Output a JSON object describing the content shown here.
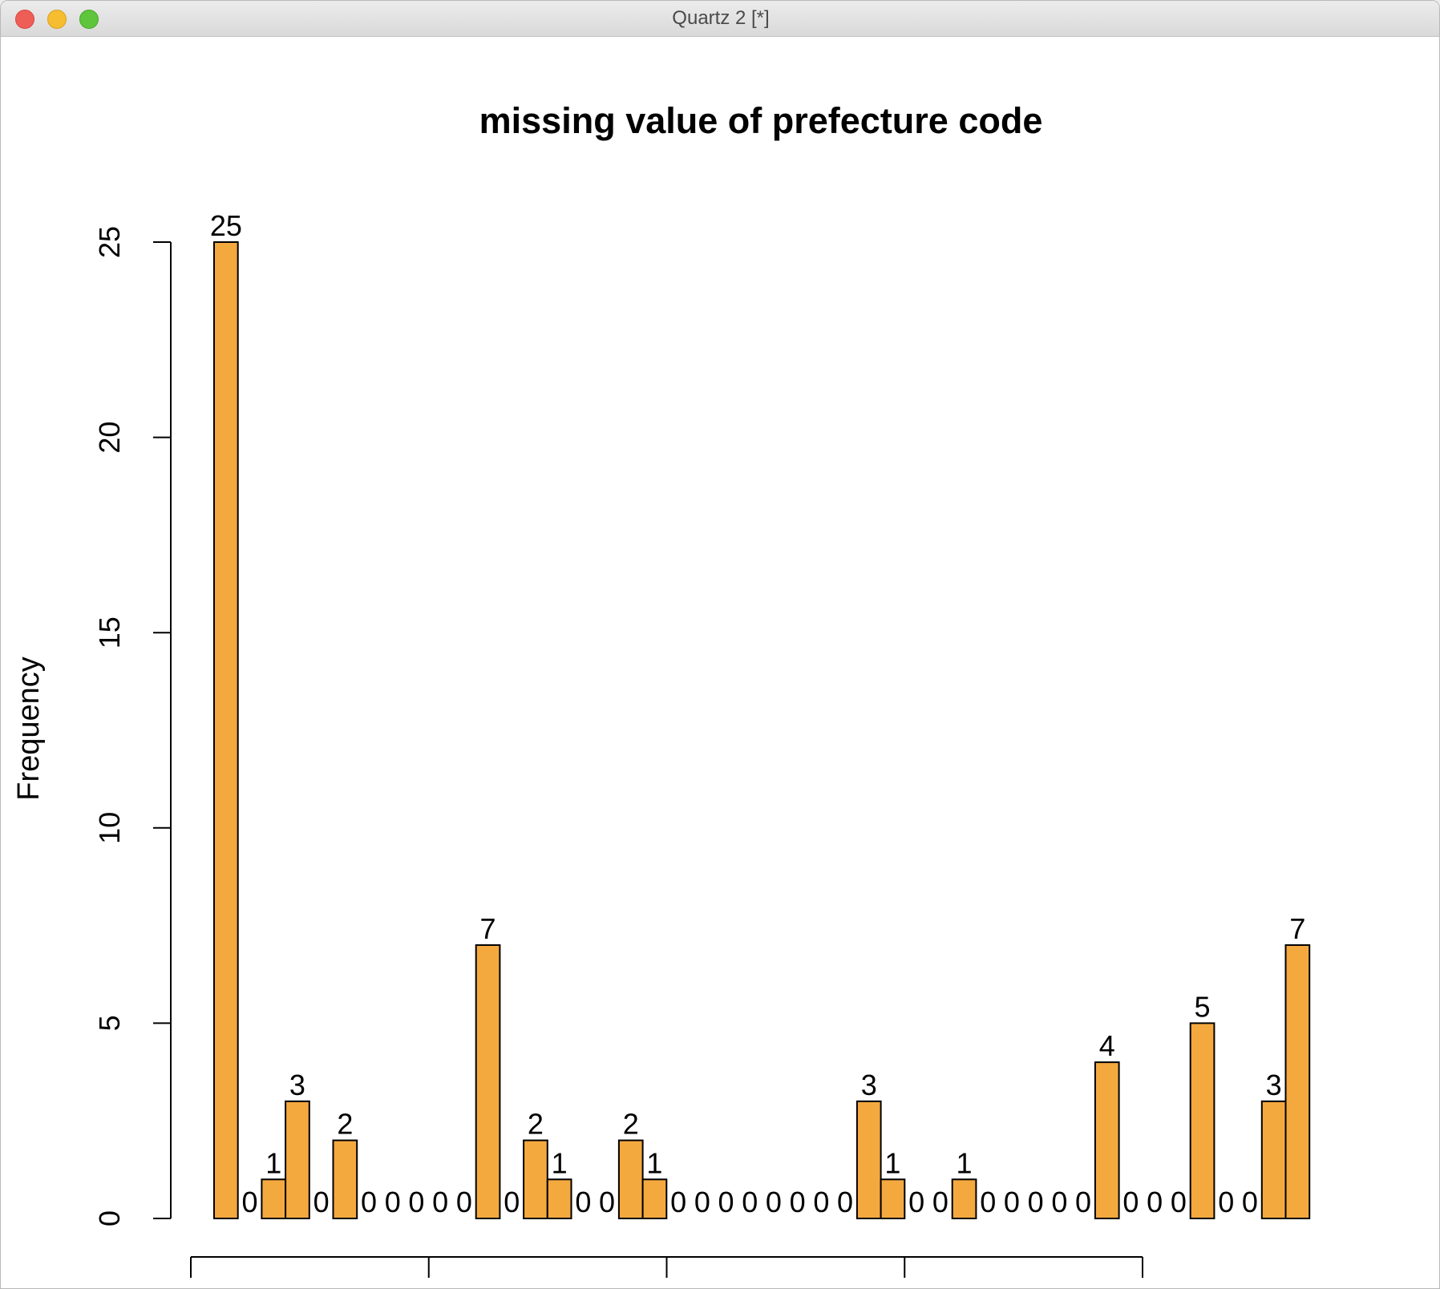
{
  "window": {
    "title": "Quartz 2 [*]"
  },
  "colors": {
    "bar_fill": "#f4a93f",
    "bar_stroke": "#000000",
    "axis": "#000000"
  },
  "chart_data": {
    "type": "bar",
    "title": "missing value of prefecture code",
    "xlabel": "",
    "ylabel": "Frequency",
    "ylim": [
      0,
      25
    ],
    "y_ticks": [
      0,
      5,
      10,
      15,
      20,
      25
    ],
    "y_tick_labels": [
      "0",
      "5",
      "10",
      "15",
      "20",
      "25"
    ],
    "x_axis_tick_count": 5,
    "x_tick_labels": [],
    "grid": false,
    "legend": "none",
    "values": [
      25,
      0,
      1,
      3,
      0,
      2,
      0,
      0,
      0,
      0,
      0,
      7,
      0,
      2,
      1,
      0,
      0,
      2,
      1,
      0,
      0,
      0,
      0,
      0,
      0,
      0,
      0,
      3,
      1,
      0,
      0,
      1,
      0,
      0,
      0,
      0,
      0,
      4,
      0,
      0,
      0,
      5,
      0,
      0,
      3,
      7
    ],
    "data_labels": [
      "25",
      "0",
      "1",
      "3",
      "0",
      "2",
      "0",
      "0",
      "0",
      "0",
      "0",
      "7",
      "0",
      "2",
      "1",
      "0",
      "0",
      "2",
      "1",
      "0",
      "0",
      "0",
      "0",
      "0",
      "0",
      "0",
      "0",
      "3",
      "1",
      "0",
      "0",
      "1",
      "0",
      "0",
      "0",
      "0",
      "0",
      "4",
      "0",
      "0",
      "0",
      "5",
      "0",
      "0",
      "3",
      "7"
    ]
  }
}
